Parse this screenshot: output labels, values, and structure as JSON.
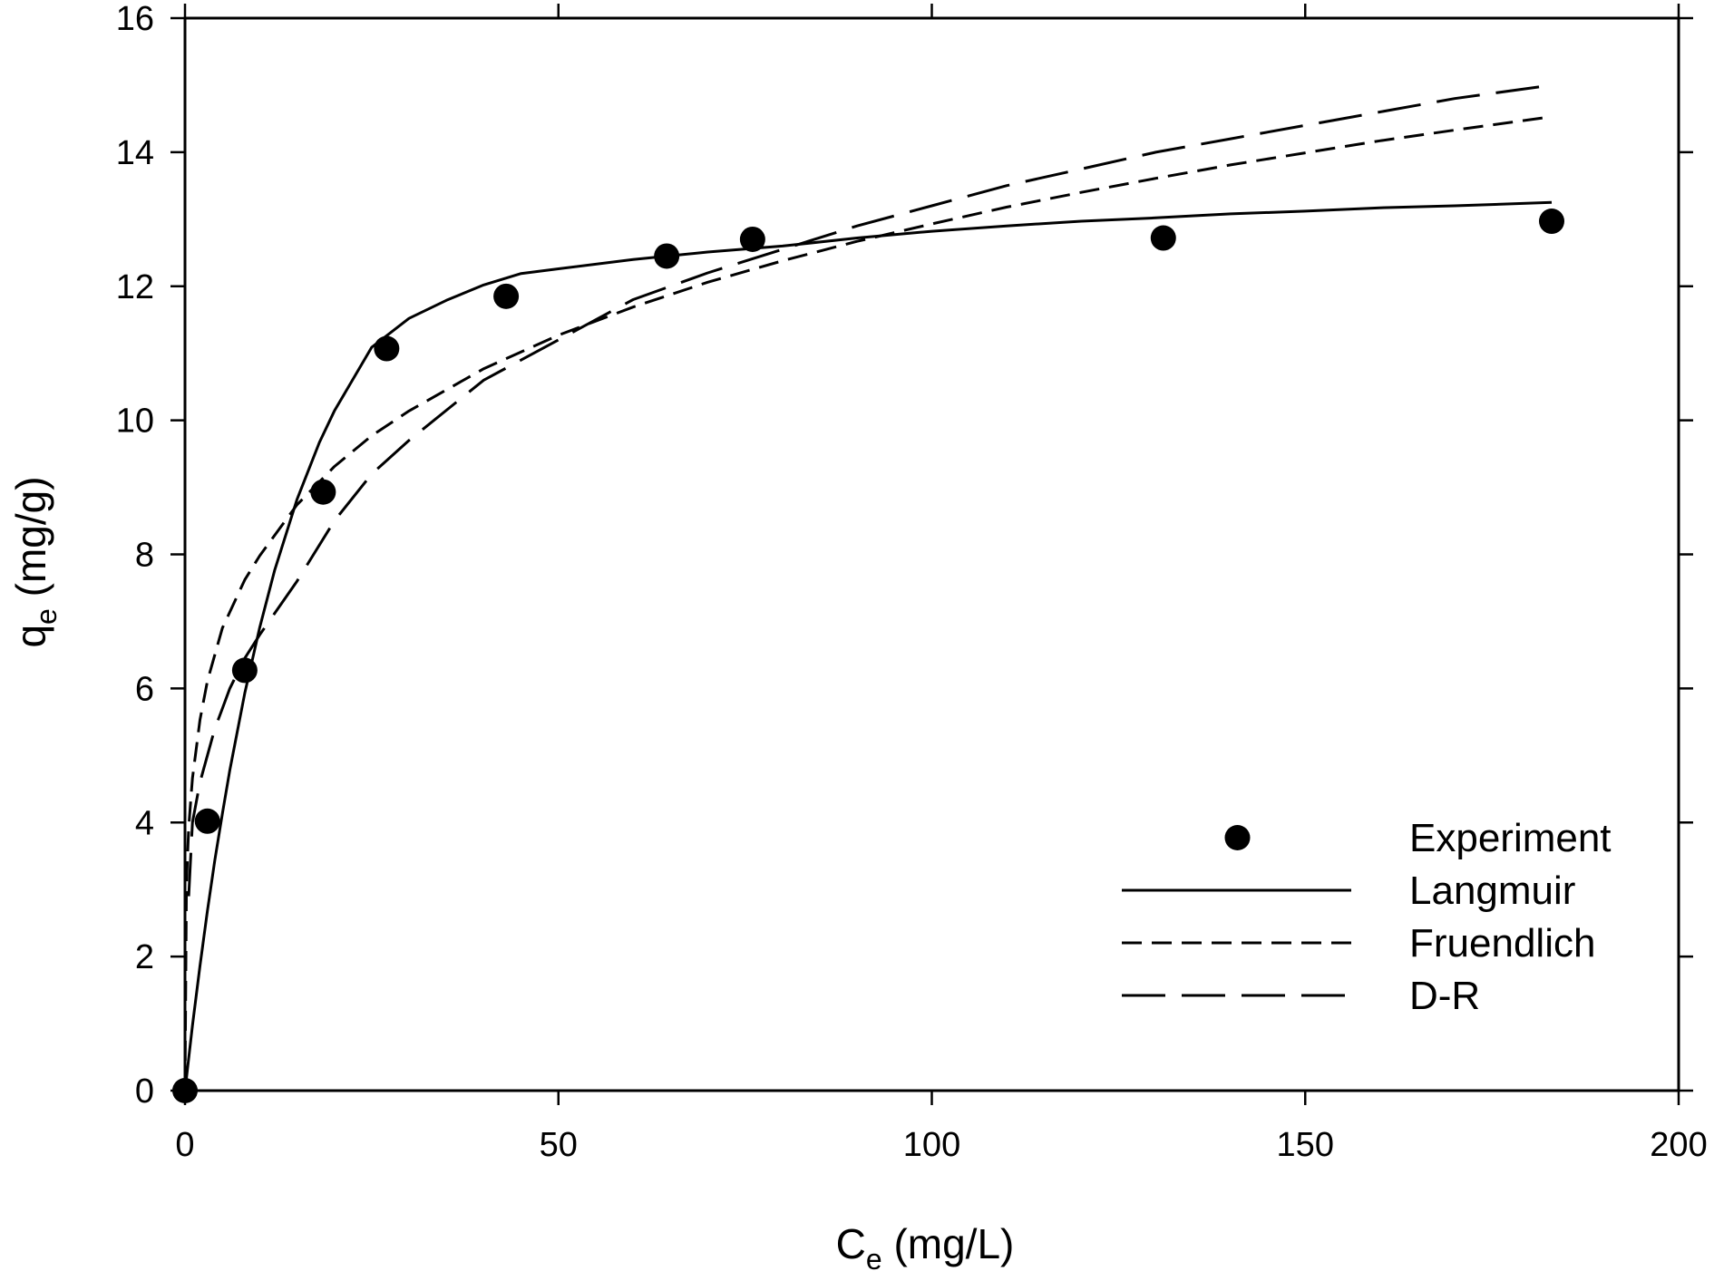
{
  "chart_data": {
    "type": "scatter",
    "xlabel": {
      "main": "C",
      "sub": "e",
      "rest": " (mg/L)"
    },
    "ylabel": {
      "main": "q",
      "sub": "e",
      "rest": " (mg/g)"
    },
    "xlim": [
      0,
      200
    ],
    "ylim": [
      0,
      16
    ],
    "x_ticks": [
      0,
      50,
      100,
      150,
      200
    ],
    "y_ticks": [
      0,
      2,
      4,
      6,
      8,
      10,
      12,
      14,
      16
    ],
    "x_tick_labels": [
      "0",
      "50",
      "100",
      "150",
      "200"
    ],
    "y_tick_labels": [
      "0",
      "2",
      "4",
      "6",
      "8",
      "10",
      "12",
      "14",
      "16"
    ],
    "grid": false,
    "legend_position": "bottom-right",
    "series": [
      {
        "name": "Experiment",
        "kind": "points",
        "marker": "filled-circle",
        "color": "#000000",
        "x": [
          0,
          3,
          8,
          18.5,
          27,
          43,
          64.5,
          76,
          131,
          183
        ],
        "y": [
          0,
          4.02,
          6.27,
          8.93,
          11.07,
          11.85,
          12.45,
          12.7,
          12.72,
          12.97
        ]
      },
      {
        "name": "Langmuir",
        "kind": "line",
        "style": "solid",
        "color": "#000000",
        "x": [
          0,
          1,
          2,
          3,
          4,
          5,
          6,
          8,
          10,
          12,
          15,
          18,
          20,
          25,
          30,
          35,
          40,
          45,
          50,
          60,
          70,
          80,
          90,
          100,
          110,
          120,
          130,
          140,
          150,
          160,
          170,
          183
        ],
        "y": [
          0,
          0.97,
          1.86,
          2.68,
          3.44,
          4.13,
          4.78,
          5.93,
          6.91,
          7.76,
          8.82,
          9.67,
          10.14,
          11.09,
          11.52,
          11.79,
          12.02,
          12.19,
          12.26,
          12.4,
          12.51,
          12.6,
          12.72,
          12.82,
          12.9,
          12.97,
          13.02,
          13.08,
          13.12,
          13.17,
          13.2,
          13.25
        ]
      },
      {
        "name": "Fruendlich",
        "kind": "line",
        "style": "dashed",
        "color": "#000000",
        "x": [
          0,
          0.2,
          0.5,
          1,
          2,
          3,
          5,
          8,
          10,
          15,
          20,
          25,
          30,
          40,
          50,
          60,
          70,
          80,
          90,
          100,
          110,
          120,
          130,
          140,
          150,
          160,
          170,
          183
        ],
        "y": [
          0,
          3.09,
          3.93,
          4.66,
          5.53,
          6.11,
          6.9,
          7.62,
          7.98,
          8.74,
          9.31,
          9.77,
          10.14,
          10.77,
          11.27,
          11.69,
          12.06,
          12.38,
          12.67,
          12.93,
          13.18,
          13.4,
          13.61,
          13.81,
          13.99,
          14.17,
          14.33,
          14.53
        ]
      },
      {
        "name": "D-R",
        "kind": "line",
        "style": "long-dashed",
        "color": "#000000",
        "x": [
          0.5,
          1,
          2,
          3,
          4,
          5,
          6,
          8,
          10,
          15,
          20,
          25,
          30,
          40,
          50,
          60,
          70,
          80,
          90,
          100,
          110,
          120,
          130,
          140,
          150,
          160,
          170,
          183
        ],
        "y": [
          2.9,
          4.0,
          4.6,
          5.0,
          5.4,
          5.7,
          6.0,
          6.45,
          6.8,
          7.6,
          8.5,
          9.2,
          9.7,
          10.6,
          11.2,
          11.8,
          12.2,
          12.55,
          12.9,
          13.2,
          13.5,
          13.75,
          14.0,
          14.2,
          14.4,
          14.6,
          14.8,
          15.0
        ]
      }
    ]
  }
}
